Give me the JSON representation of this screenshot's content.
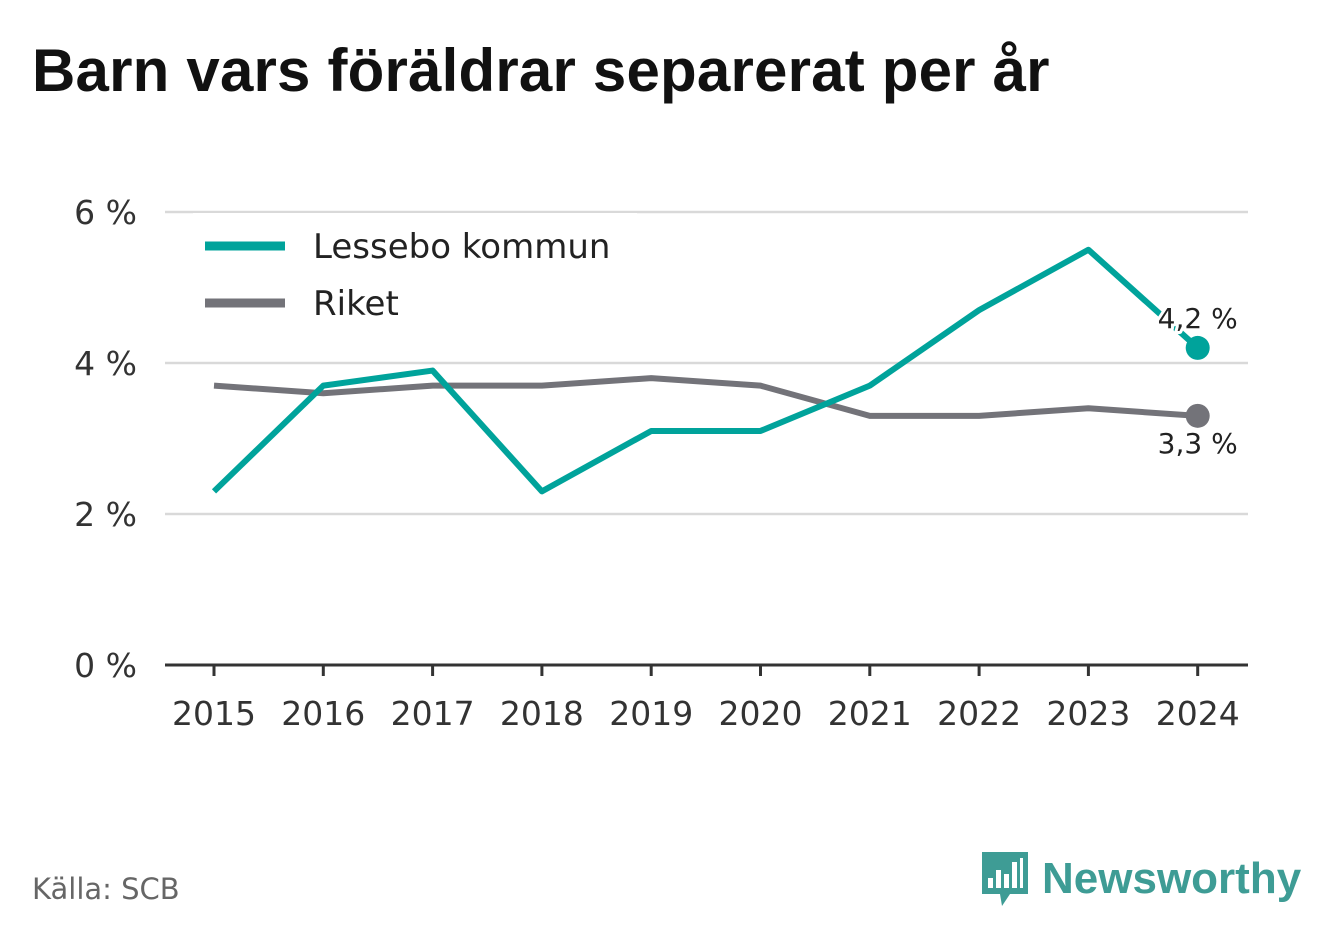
{
  "title": "Barn vars föräldrar separerat per år",
  "source": "Källa: SCB",
  "brand": {
    "name": "Newsworthy",
    "icon": "newsworthy-bar-chart-icon",
    "color": "#3e9c95"
  },
  "chart_data": {
    "type": "line",
    "x": [
      "2015",
      "2016",
      "2017",
      "2018",
      "2019",
      "2020",
      "2021",
      "2022",
      "2023",
      "2024"
    ],
    "series": [
      {
        "name": "Lessebo kommun",
        "color": "#00a39b",
        "values": [
          2.3,
          3.7,
          3.9,
          2.3,
          3.1,
          3.1,
          3.7,
          4.7,
          5.5,
          4.2
        ],
        "end_label": "4,2 %"
      },
      {
        "name": "Riket",
        "color": "#737379",
        "values": [
          3.7,
          3.6,
          3.7,
          3.7,
          3.8,
          3.7,
          3.3,
          3.3,
          3.4,
          3.3
        ],
        "end_label": "3,3 %"
      }
    ],
    "ylim": [
      0,
      6
    ],
    "yticks": [
      0,
      2,
      4,
      6
    ],
    "ytick_labels": [
      "0 %",
      "2 %",
      "4 %",
      "6 %"
    ],
    "grid": true,
    "legend_position": "top-left"
  }
}
